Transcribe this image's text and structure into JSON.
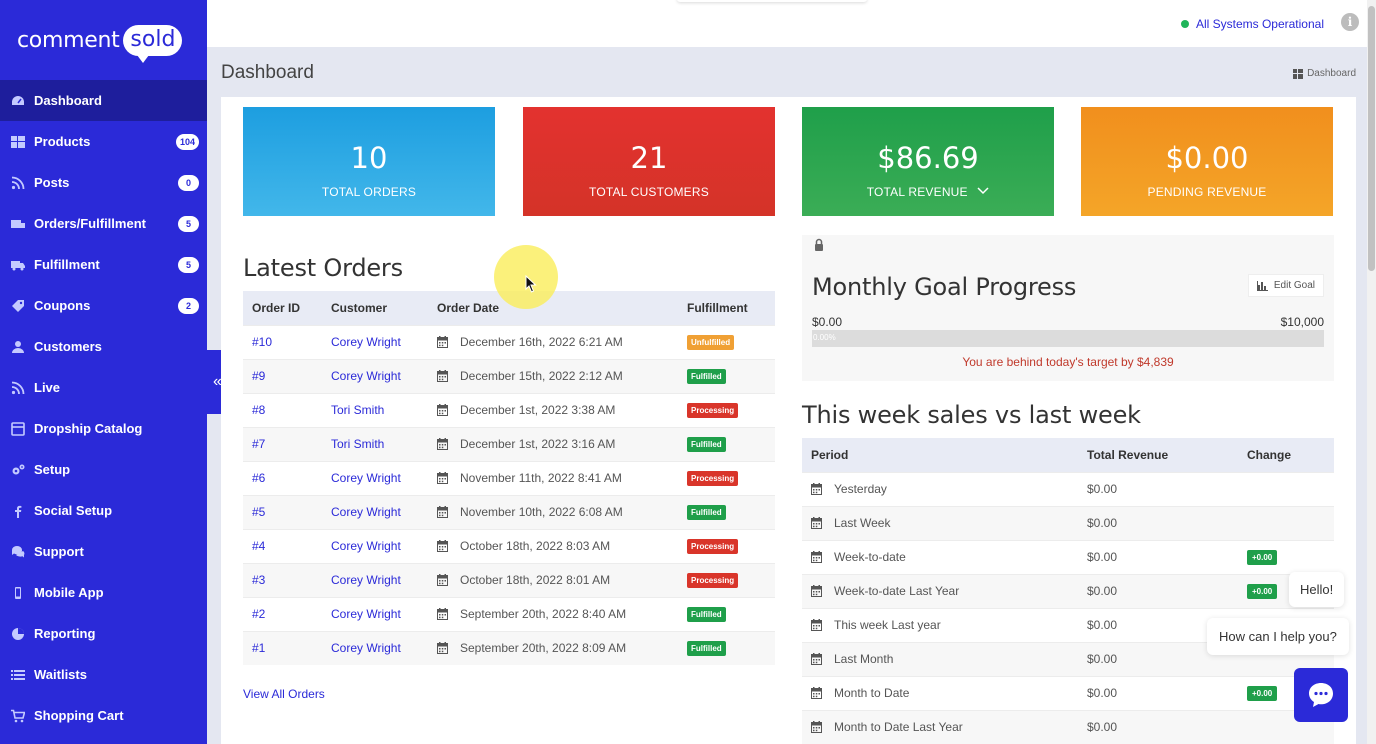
{
  "brand": {
    "name_part1": "comment",
    "name_part2": "sold"
  },
  "sidebar": {
    "items": [
      {
        "label": "Dashboard",
        "icon": "dashboard-icon",
        "badge": ""
      },
      {
        "label": "Products",
        "icon": "products-icon",
        "badge": "104"
      },
      {
        "label": "Posts",
        "icon": "rss-icon",
        "badge": "0"
      },
      {
        "label": "Orders/Fulfillment",
        "icon": "orders-icon",
        "badge": "5"
      },
      {
        "label": "Fulfillment",
        "icon": "truck-icon",
        "badge": "5"
      },
      {
        "label": "Coupons",
        "icon": "tag-icon",
        "badge": "2"
      },
      {
        "label": "Customers",
        "icon": "user-icon",
        "badge": ""
      },
      {
        "label": "Live",
        "icon": "rss-icon",
        "badge": ""
      },
      {
        "label": "Dropship Catalog",
        "icon": "catalog-icon",
        "badge": ""
      },
      {
        "label": "Setup",
        "icon": "cogs-icon",
        "badge": ""
      },
      {
        "label": "Social Setup",
        "icon": "facebook-icon",
        "badge": ""
      },
      {
        "label": "Support",
        "icon": "support-icon",
        "badge": ""
      },
      {
        "label": "Mobile App",
        "icon": "mobile-icon",
        "badge": ""
      },
      {
        "label": "Reporting",
        "icon": "reporting-icon",
        "badge": ""
      },
      {
        "label": "Waitlists",
        "icon": "list-icon",
        "badge": ""
      },
      {
        "label": "Shopping Cart",
        "icon": "cart-icon",
        "badge": ""
      }
    ],
    "collapse_glyph": "«"
  },
  "topbar": {
    "status_text": "All Systems Operational",
    "info_glyph": "i"
  },
  "page": {
    "title": "Dashboard",
    "breadcrumb": "Dashboard"
  },
  "stats": [
    {
      "value": "10",
      "label": "TOTAL ORDERS",
      "color": "#1d9ee0"
    },
    {
      "value": "21",
      "label": "TOTAL CUSTOMERS",
      "color": "#e3322f"
    },
    {
      "value": "$86.69",
      "label": "TOTAL REVENUE",
      "color": "#1f9f4a"
    },
    {
      "value": "$0.00",
      "label": "PENDING REVENUE",
      "color": "#f18f1d"
    }
  ],
  "latest_orders": {
    "title": "Latest Orders",
    "columns": [
      "Order ID",
      "Customer",
      "Order Date",
      "Fulfillment"
    ],
    "rows": [
      {
        "id": "#10",
        "customer": "Corey Wright",
        "date": "December 16th, 2022 6:21 AM",
        "status": "Unfulfilled",
        "type": "unf"
      },
      {
        "id": "#9",
        "customer": "Corey Wright",
        "date": "December 15th, 2022 2:12 AM",
        "status": "Fulfilled",
        "type": "ful"
      },
      {
        "id": "#8",
        "customer": "Tori Smith",
        "date": "December 1st, 2022 3:38 AM",
        "status": "Processing",
        "type": "pro"
      },
      {
        "id": "#7",
        "customer": "Tori Smith",
        "date": "December 1st, 2022 3:16 AM",
        "status": "Fulfilled",
        "type": "ful"
      },
      {
        "id": "#6",
        "customer": "Corey Wright",
        "date": "November 11th, 2022 8:41 AM",
        "status": "Processing",
        "type": "pro"
      },
      {
        "id": "#5",
        "customer": "Corey Wright",
        "date": "November 10th, 2022 6:08 AM",
        "status": "Fulfilled",
        "type": "ful"
      },
      {
        "id": "#4",
        "customer": "Corey Wright",
        "date": "October 18th, 2022 8:03 AM",
        "status": "Processing",
        "type": "pro"
      },
      {
        "id": "#3",
        "customer": "Corey Wright",
        "date": "October 18th, 2022 8:01 AM",
        "status": "Processing",
        "type": "pro"
      },
      {
        "id": "#2",
        "customer": "Corey Wright",
        "date": "September 20th, 2022 8:40 AM",
        "status": "Fulfilled",
        "type": "ful"
      },
      {
        "id": "#1",
        "customer": "Corey Wright",
        "date": "September 20th, 2022 8:09 AM",
        "status": "Fulfilled",
        "type": "ful"
      }
    ],
    "view_all": "View All Orders"
  },
  "goal": {
    "title": "Monthly Goal Progress",
    "edit_label": "Edit Goal",
    "min_label": "$0.00",
    "max_label": "$10,000",
    "progress_text": "0.00%",
    "progress_fraction": 0,
    "message": "You are behind today's target by $4,839"
  },
  "sales": {
    "title": "This week sales vs last week",
    "columns": [
      "Period",
      "Total Revenue",
      "Change"
    ],
    "rows": [
      {
        "period": "Yesterday",
        "revenue": "$0.00",
        "change": ""
      },
      {
        "period": "Last Week",
        "revenue": "$0.00",
        "change": ""
      },
      {
        "period": "Week-to-date",
        "revenue": "$0.00",
        "change": "+0.00"
      },
      {
        "period": "Week-to-date Last Year",
        "revenue": "$0.00",
        "change": "+0.00"
      },
      {
        "period": "This week Last year",
        "revenue": "$0.00",
        "change": ""
      },
      {
        "period": "Last Month",
        "revenue": "$0.00",
        "change": ""
      },
      {
        "period": "Month to Date",
        "revenue": "$0.00",
        "change": "+0.00"
      },
      {
        "period": "Month to Date Last Year",
        "revenue": "$0.00",
        "change": ""
      }
    ]
  },
  "chat": {
    "hello": "Hello!",
    "help": "How can I help you?"
  }
}
